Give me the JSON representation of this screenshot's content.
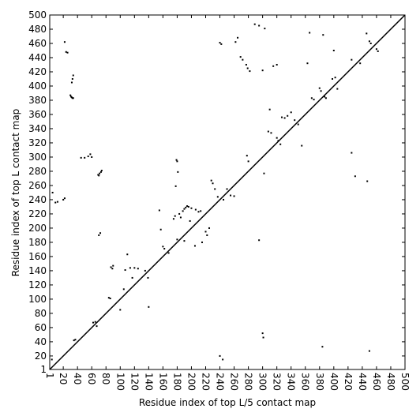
{
  "chart_data": {
    "type": "scatter",
    "xlabel": "Residue index of top L/5 contact map",
    "ylabel": "Residue index of top L contact map",
    "xlim": [
      1,
      500
    ],
    "ylim": [
      1,
      500
    ],
    "xticks": [
      1,
      20,
      40,
      60,
      80,
      100,
      120,
      140,
      160,
      180,
      200,
      220,
      240,
      260,
      280,
      300,
      320,
      340,
      360,
      380,
      400,
      420,
      440,
      460,
      480,
      500
    ],
    "yticks": [
      1,
      20,
      40,
      60,
      80,
      100,
      120,
      140,
      160,
      180,
      200,
      220,
      240,
      260,
      280,
      300,
      320,
      340,
      360,
      380,
      400,
      420,
      440,
      460,
      480,
      500
    ],
    "diagonal_line": true,
    "series": [
      {
        "color": "#000000",
        "x": [
          4,
          5,
          9,
          12,
          20,
          22,
          22,
          24,
          26,
          30,
          31,
          32,
          33,
          34,
          32,
          33,
          34,
          35,
          37,
          45,
          50,
          55,
          58,
          60,
          62,
          65,
          67,
          69,
          70,
          71,
          73,
          74,
          70,
          72,
          84,
          86,
          87,
          89,
          90,
          100,
          105,
          107,
          110,
          114,
          117,
          120,
          125,
          135,
          139,
          140,
          155,
          157,
          160,
          162,
          168,
          175,
          177,
          178,
          179,
          180,
          181,
          183,
          185,
          188,
          190,
          192,
          194,
          196,
          200,
          206,
          210,
          213,
          220,
          222,
          225,
          228,
          230,
          233,
          237,
          240,
          242,
          245,
          250,
          255,
          262,
          265,
          269,
          272,
          277,
          279,
          282,
          278,
          280,
          289,
          295,
          300,
          303,
          310,
          308,
          312,
          315,
          320,
          320,
          322,
          325,
          327,
          331,
          335,
          340,
          345,
          350,
          363,
          366,
          369,
          372,
          380,
          382,
          385,
          387,
          389,
          398,
          402,
          400,
          405,
          425,
          437,
          446,
          450,
          452,
          460,
          462,
          180,
          190,
          198,
          205,
          215,
          240,
          244,
          260,
          295,
          300,
          301,
          302,
          355,
          384,
          425,
          430,
          447,
          450
        ],
        "values": [
          15,
          250,
          236,
          237,
          240,
          242,
          462,
          448,
          447,
          387,
          385,
          384,
          383,
          383,
          405,
          410,
          415,
          42,
          43,
          299,
          299,
          301,
          304,
          300,
          67,
          68,
          62,
          275,
          274,
          277,
          279,
          281,
          190,
          193,
          102,
          101,
          145,
          143,
          147,
          85,
          114,
          141,
          163,
          144,
          130,
          144,
          143,
          140,
          130,
          89,
          225,
          198,
          174,
          171,
          165,
          213,
          217,
          259,
          296,
          294,
          279,
          220,
          215,
          224,
          227,
          229,
          231,
          230,
          228,
          226,
          223,
          224,
          195,
          190,
          200,
          267,
          263,
          255,
          244,
          461,
          459,
          240,
          255,
          246,
          462,
          468,
          441,
          437,
          430,
          425,
          421,
          302,
          294,
          487,
          485,
          422,
          481,
          367,
          336,
          334,
          428,
          430,
          327,
          323,
          318,
          356,
          355,
          358,
          363,
          352,
          346,
          432,
          475,
          383,
          381,
          397,
          393,
          472,
          385,
          383,
          410,
          412,
          450,
          396,
          437,
          432,
          474,
          463,
          460,
          452,
          449,
          184,
          182,
          210,
          175,
          180,
          20,
          15,
          245,
          183,
          52,
          46,
          277,
          316,
          33,
          306,
          273,
          266,
          27
        ]
      }
    ]
  }
}
